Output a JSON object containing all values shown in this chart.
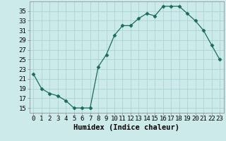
{
  "x": [
    0,
    1,
    2,
    3,
    4,
    5,
    6,
    7,
    8,
    9,
    10,
    11,
    12,
    13,
    14,
    15,
    16,
    17,
    18,
    19,
    20,
    21,
    22,
    23
  ],
  "y": [
    22,
    19,
    18,
    17.5,
    16.5,
    15,
    15,
    15,
    23.5,
    26,
    30,
    32,
    32,
    33.5,
    34.5,
    34,
    36,
    36,
    36,
    34.5,
    33,
    31,
    28,
    25
  ],
  "line_color": "#1a6b5a",
  "marker": "D",
  "marker_size": 2.5,
  "background_color": "#cceaea",
  "grid_color": "#aad4d4",
  "xlabel": "Humidex (Indice chaleur)",
  "xlabel_fontsize": 7.5,
  "ylabel_ticks": [
    15,
    17,
    19,
    21,
    23,
    25,
    27,
    29,
    31,
    33,
    35
  ],
  "ylim": [
    14,
    37
  ],
  "xlim": [
    -0.5,
    23.5
  ],
  "tick_fontsize": 6.5
}
